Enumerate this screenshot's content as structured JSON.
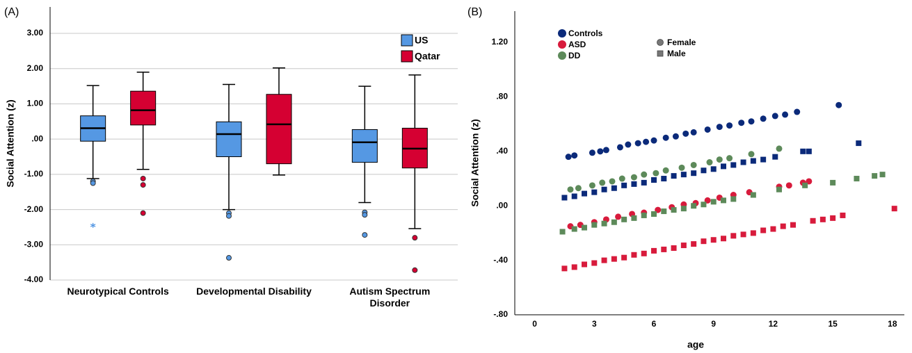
{
  "chart_data": [
    {
      "type": "box",
      "panel_label": "(A)",
      "y_label": "Social Attention (z)",
      "categories": [
        "Neurotypical Controls",
        "Developmental Disability",
        "Autism Spectrum Disorder"
      ],
      "ylim": [
        -4,
        3.75
      ],
      "yticks": [
        {
          "value": 3,
          "label": "3.00"
        },
        {
          "value": 2,
          "label": "2.00"
        },
        {
          "value": 1,
          "label": "1.00"
        },
        {
          "value": 0,
          "label": ".00"
        },
        {
          "value": -1,
          "label": "-1.00"
        },
        {
          "value": -2,
          "label": "-2.00"
        },
        {
          "value": -3,
          "label": "-3.00"
        },
        {
          "value": -4,
          "label": "-4.00"
        }
      ],
      "grid": true,
      "legend_position": "upper right",
      "series": [
        {
          "name": "US",
          "color": "#5598e3",
          "boxes": [
            {
              "min": -1.12,
              "q1": -0.06,
              "median": 0.31,
              "q3": 0.66,
              "max": 1.52,
              "outliers": [
                -1.2,
                -1.25
              ],
              "extremes": [
                -2.45
              ]
            },
            {
              "min": -2.0,
              "q1": -0.5,
              "median": 0.14,
              "q3": 0.49,
              "max": 1.55,
              "outliers": [
                -2.1,
                -2.18,
                -3.37
              ],
              "extremes": []
            },
            {
              "min": -1.8,
              "q1": -0.66,
              "median": -0.09,
              "q3": 0.27,
              "max": 1.5,
              "outliers": [
                -2.08,
                -2.15,
                -2.72
              ],
              "extremes": []
            }
          ]
        },
        {
          "name": "Qatar",
          "color": "#d50032",
          "boxes": [
            {
              "min": -0.86,
              "q1": 0.4,
              "median": 0.82,
              "q3": 1.36,
              "max": 1.9,
              "outliers": [
                -1.12,
                -1.3,
                -2.1
              ],
              "extremes": []
            },
            {
              "min": -1.02,
              "q1": -0.7,
              "median": 0.42,
              "q3": 1.27,
              "max": 2.02,
              "outliers": [],
              "extremes": []
            },
            {
              "min": -2.54,
              "q1": -0.82,
              "median": -0.27,
              "q3": 0.31,
              "max": 1.82,
              "outliers": [
                -2.8,
                -3.72
              ],
              "extremes": []
            }
          ]
        }
      ]
    },
    {
      "type": "scatter",
      "panel_label": "(B)",
      "x_label": "age",
      "y_label": "Social Attention (z)",
      "xlim": [
        -1,
        18.6
      ],
      "xticks": [
        0,
        3,
        6,
        9,
        12,
        15,
        18
      ],
      "ylim": [
        -0.8,
        1.43
      ],
      "yticks": [
        {
          "value": 1.2,
          "label": "1.20"
        },
        {
          "value": 0.8,
          "label": ".80"
        },
        {
          "value": 0.4,
          "label": ".40"
        },
        {
          "value": 0,
          "label": ".00"
        },
        {
          "value": -0.4,
          "label": "-.40"
        },
        {
          "value": -0.8,
          "label": "-.80"
        }
      ],
      "grid": false,
      "shapes": [
        {
          "name": "Female",
          "marker": "circle"
        },
        {
          "name": "Male",
          "marker": "square"
        }
      ],
      "series": [
        {
          "name": "Controls",
          "color": "#0b2a7a",
          "points": [
            {
              "x": [
                1.7,
                2.0,
                2.9,
                3.3,
                3.6,
                4.3,
                4.7,
                5.2,
                5.6,
                6.0,
                6.6,
                7.1,
                7.6,
                8.0,
                8.7,
                9.3,
                9.8,
                10.4,
                10.9,
                11.5,
                12.1,
                12.6,
                13.2,
                15.3
              ],
              "y": [
                0.36,
                0.37,
                0.39,
                0.4,
                0.41,
                0.43,
                0.45,
                0.46,
                0.47,
                0.48,
                0.5,
                0.51,
                0.53,
                0.54,
                0.56,
                0.58,
                0.59,
                0.61,
                0.62,
                0.64,
                0.66,
                0.67,
                0.69,
                0.74
              ]
            },
            {
              "x": [
                1.5,
                2.0,
                2.5,
                3.0,
                3.5,
                4.0,
                4.5,
                5.0,
                5.5,
                6.0,
                6.5,
                7.0,
                7.5,
                8.0,
                8.5,
                9.0,
                9.5,
                10.0,
                10.5,
                11.0,
                11.5,
                12.1,
                13.5,
                13.8,
                16.3
              ],
              "y": [
                0.06,
                0.07,
                0.09,
                0.1,
                0.12,
                0.13,
                0.15,
                0.16,
                0.17,
                0.19,
                0.2,
                0.22,
                0.23,
                0.24,
                0.26,
                0.27,
                0.29,
                0.3,
                0.32,
                0.33,
                0.34,
                0.36,
                0.4,
                0.4,
                0.46
              ]
            }
          ]
        },
        {
          "name": "ASD",
          "color": "#d81b3c",
          "points": [
            {
              "x": [
                1.8,
                2.3,
                3.0,
                3.6,
                4.2,
                4.9,
                5.5,
                6.2,
                6.9,
                7.5,
                8.1,
                8.7,
                9.3,
                10.0,
                10.8,
                12.3,
                12.8,
                13.5,
                13.8
              ],
              "y": [
                -0.15,
                -0.14,
                -0.12,
                -0.1,
                -0.08,
                -0.06,
                -0.05,
                -0.03,
                -0.01,
                0.01,
                0.02,
                0.04,
                0.06,
                0.08,
                0.1,
                0.14,
                0.15,
                0.17,
                0.18
              ]
            },
            {
              "x": [
                1.5,
                2.0,
                2.5,
                3.0,
                3.5,
                4.0,
                4.5,
                5.0,
                5.5,
                6.0,
                6.5,
                7.0,
                7.5,
                8.0,
                8.5,
                9.0,
                9.5,
                10.0,
                10.5,
                11.0,
                11.5,
                12.0,
                12.5,
                13.0,
                14.0,
                14.5,
                15.0,
                15.5,
                18.1
              ],
              "y": [
                -0.46,
                -0.45,
                -0.43,
                -0.42,
                -0.4,
                -0.39,
                -0.38,
                -0.36,
                -0.35,
                -0.33,
                -0.32,
                -0.31,
                -0.29,
                -0.28,
                -0.26,
                -0.25,
                -0.24,
                -0.22,
                -0.21,
                -0.2,
                -0.18,
                -0.17,
                -0.15,
                -0.14,
                -0.11,
                -0.1,
                -0.09,
                -0.07,
                -0.02
              ]
            }
          ]
        },
        {
          "name": "DD",
          "color": "#5d8a5a",
          "points": [
            {
              "x": [
                1.8,
                2.2,
                2.9,
                3.4,
                3.9,
                4.4,
                5.0,
                5.5,
                6.1,
                6.6,
                7.4,
                8.0,
                8.8,
                9.3,
                9.8,
                10.9,
                12.3
              ],
              "y": [
                0.12,
                0.13,
                0.15,
                0.17,
                0.18,
                0.2,
                0.21,
                0.23,
                0.24,
                0.26,
                0.28,
                0.3,
                0.32,
                0.34,
                0.35,
                0.38,
                0.42
              ]
            },
            {
              "x": [
                1.4,
                2.0,
                2.5,
                3.0,
                3.5,
                4.0,
                4.5,
                5.0,
                5.5,
                6.0,
                6.5,
                7.0,
                7.5,
                8.0,
                8.5,
                9.0,
                9.5,
                10.0,
                11.0,
                12.3,
                13.6,
                15.0,
                16.2,
                17.1,
                17.5
              ],
              "y": [
                -0.19,
                -0.17,
                -0.16,
                -0.14,
                -0.13,
                -0.12,
                -0.1,
                -0.09,
                -0.07,
                -0.06,
                -0.04,
                -0.03,
                -0.02,
                0.0,
                0.01,
                0.03,
                0.04,
                0.05,
                0.08,
                0.12,
                0.15,
                0.17,
                0.2,
                0.22,
                0.23
              ]
            }
          ]
        }
      ]
    }
  ]
}
